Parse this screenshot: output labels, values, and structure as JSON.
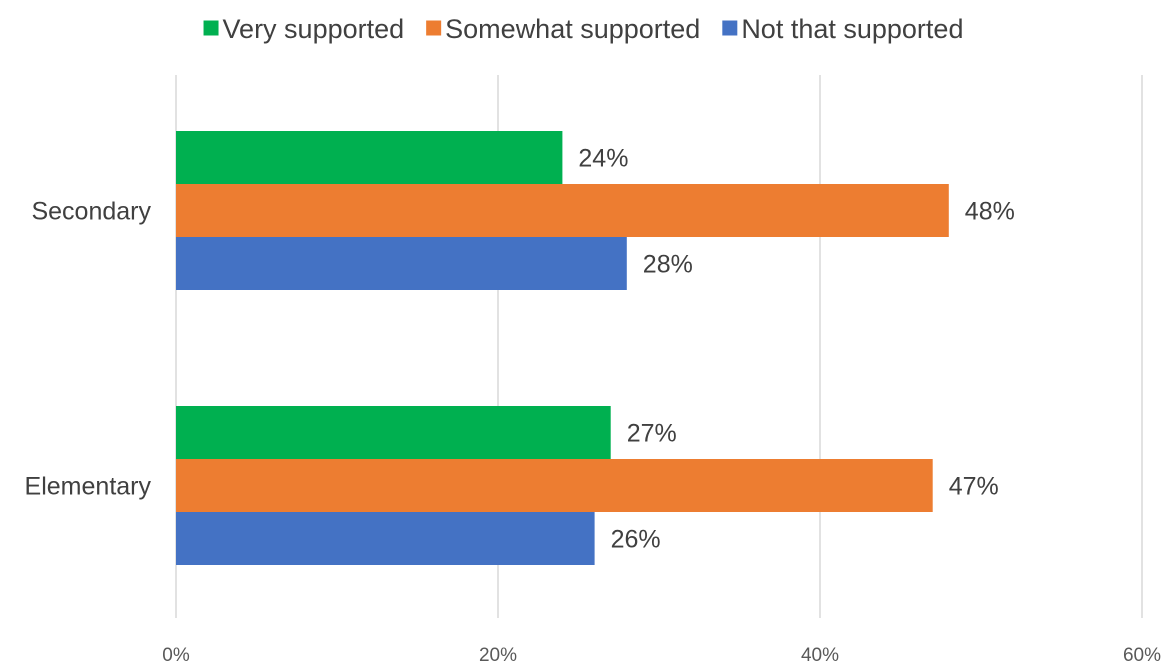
{
  "chart_data": {
    "type": "bar",
    "orientation": "horizontal",
    "title": "",
    "xlabel": "",
    "ylabel": "",
    "categories": [
      "Secondary",
      "Elementary"
    ],
    "series": [
      {
        "name": "Very supported",
        "color": "#00B050",
        "values": [
          24,
          27
        ],
        "labels": [
          "24%",
          "27%"
        ]
      },
      {
        "name": "Somewhat supported",
        "color": "#ED7D31",
        "values": [
          48,
          47
        ],
        "labels": [
          "48%",
          "47%"
        ]
      },
      {
        "name": "Not that supported",
        "color": "#4472C4",
        "values": [
          28,
          26
        ],
        "labels": [
          "28%",
          "26%"
        ]
      }
    ],
    "xlim": [
      0,
      60
    ],
    "xticks": [
      0,
      20,
      40,
      60
    ],
    "xtick_labels": [
      "0%",
      "20%",
      "40%",
      "60%"
    ],
    "grid": "vertical",
    "legend_position": "top"
  }
}
